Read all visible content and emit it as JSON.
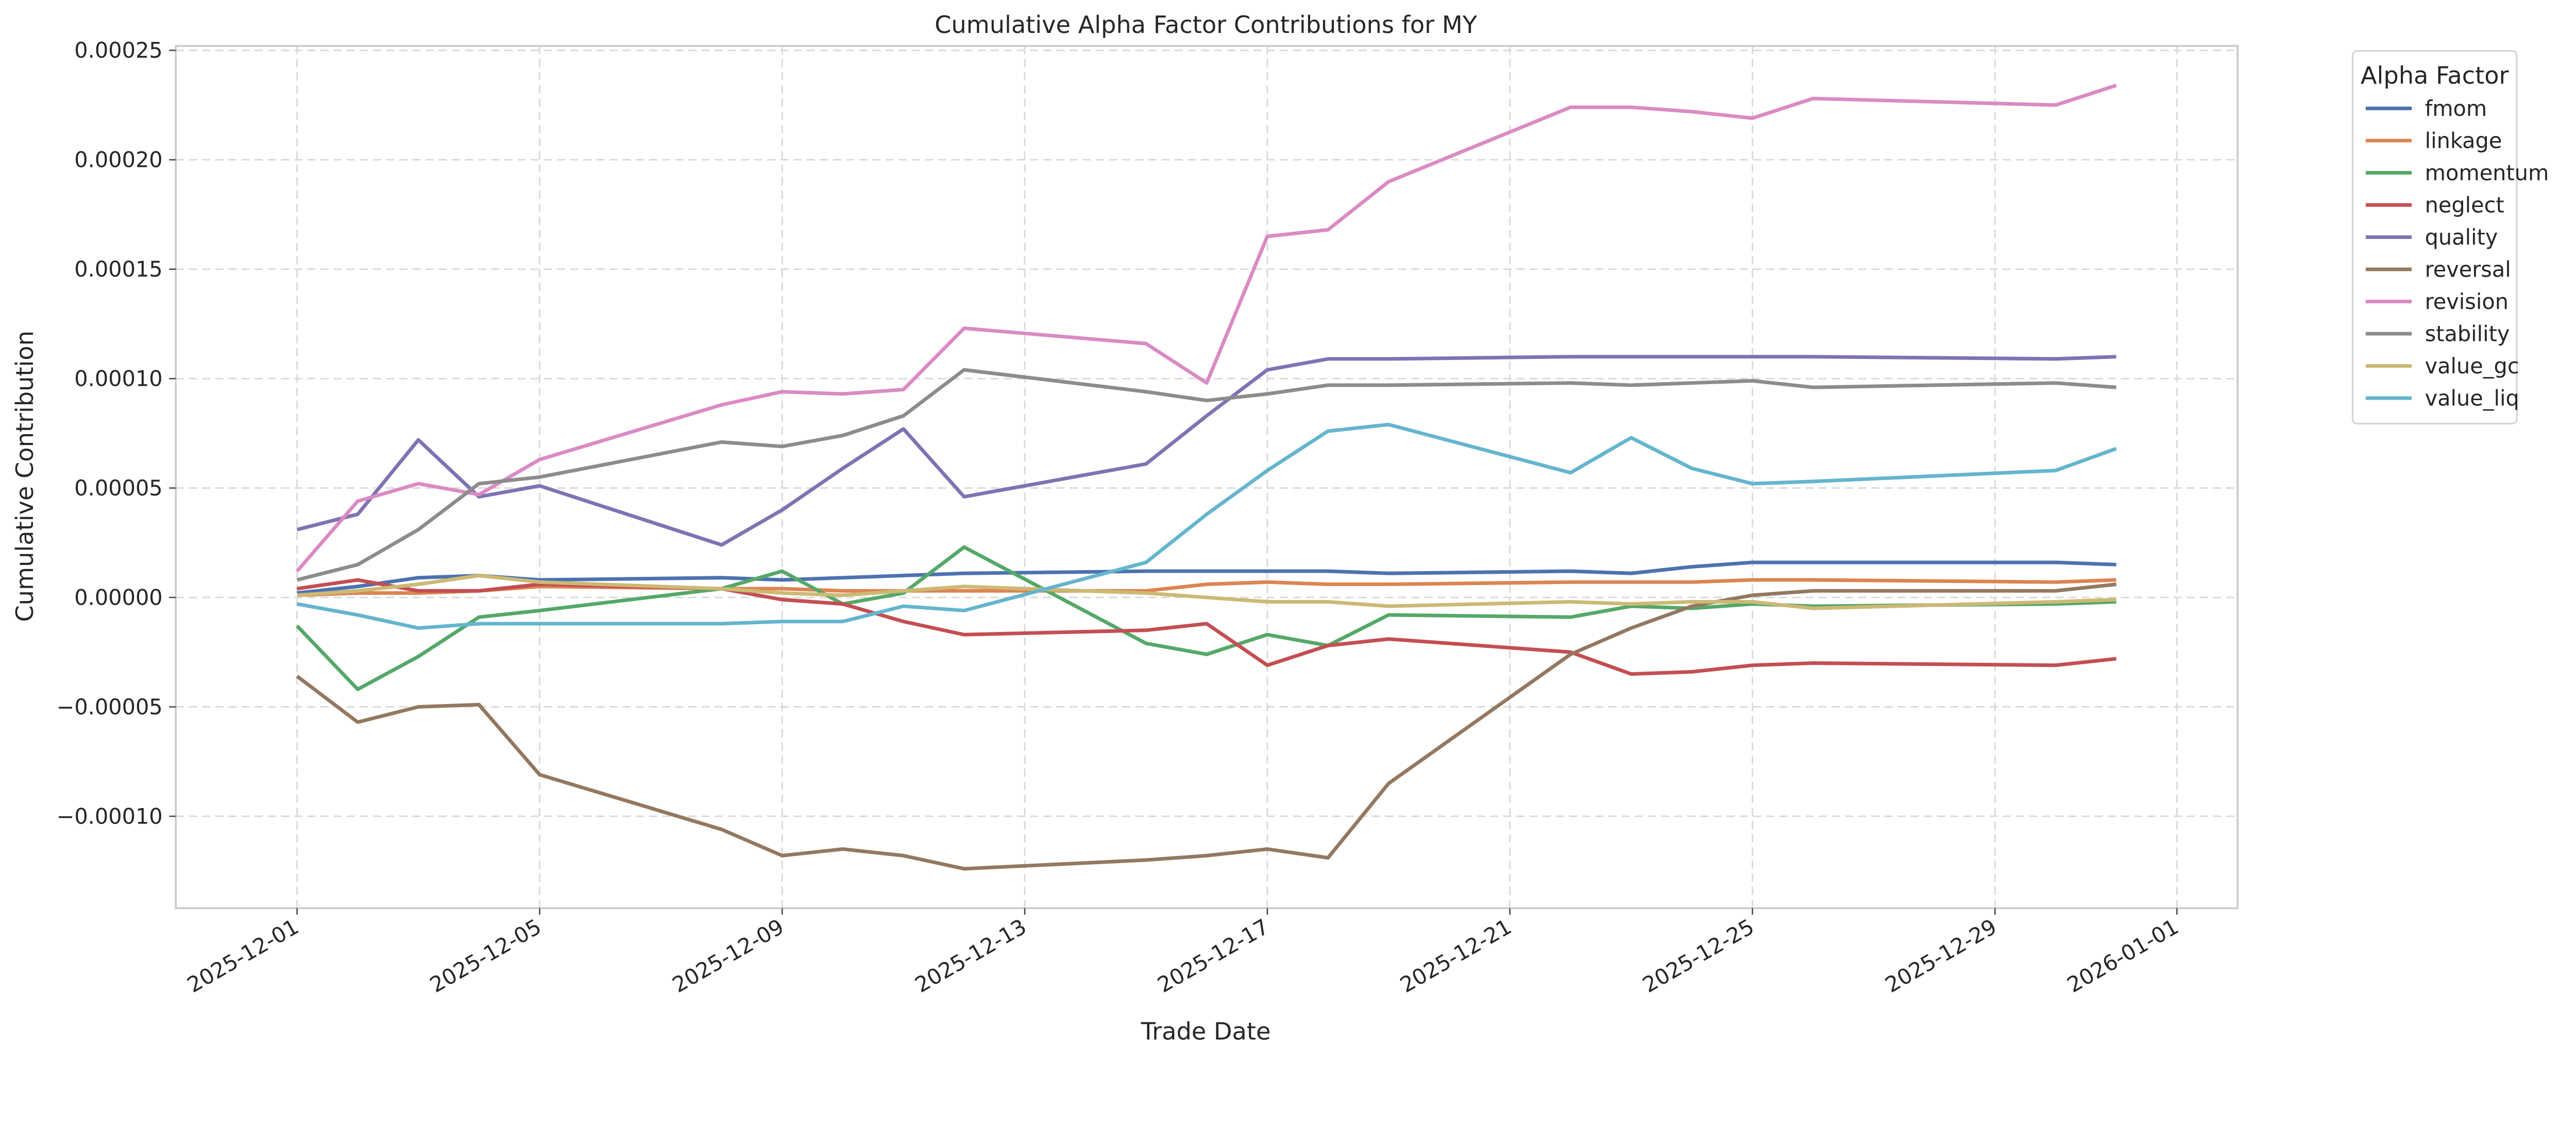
{
  "chart_data": {
    "type": "line",
    "title": "Cumulative Alpha Factor Contributions for MY",
    "xlabel": "Trade Date",
    "ylabel": "Cumulative Contribution",
    "ylim": [
      -0.000142,
      0.000252
    ],
    "xlim": [
      "2025-11-29",
      "2026-01-02"
    ],
    "grid": true,
    "legend": {
      "title": "Alpha Factor",
      "placement": "outside-top-right"
    },
    "yticks": [
      "−0.00010",
      "−0.00005",
      "0.00000",
      "0.00005",
      "0.00010",
      "0.00015",
      "0.00020",
      "0.00025"
    ],
    "ytick_values": [
      -0.0001,
      -5e-05,
      0,
      5e-05,
      0.0001,
      0.00015,
      0.0002,
      0.00025
    ],
    "xticks": [
      "2025-12-01",
      "2025-12-05",
      "2025-12-09",
      "2025-12-13",
      "2025-12-17",
      "2025-12-21",
      "2025-12-25",
      "2025-12-29",
      "2026-01-01"
    ],
    "x": [
      "2025-12-01",
      "2025-12-02",
      "2025-12-03",
      "2025-12-04",
      "2025-12-05",
      "2025-12-08",
      "2025-12-09",
      "2025-12-10",
      "2025-12-11",
      "2025-12-12",
      "2025-12-15",
      "2025-12-16",
      "2025-12-17",
      "2025-12-18",
      "2025-12-19",
      "2025-12-22",
      "2025-12-23",
      "2025-12-24",
      "2025-12-25",
      "2025-12-26",
      "2025-12-30",
      "2025-12-31"
    ],
    "series": [
      {
        "name": "fmom",
        "color": "#4c72b0",
        "values": [
          2e-06,
          5e-06,
          9e-06,
          1e-05,
          8e-06,
          9e-06,
          8e-06,
          9e-06,
          1e-05,
          1.1e-05,
          1.2e-05,
          1.2e-05,
          1.2e-05,
          1.2e-05,
          1.1e-05,
          1.2e-05,
          1.1e-05,
          1.4e-05,
          1.6e-05,
          1.6e-05,
          1.6e-05,
          1.5e-05
        ]
      },
      {
        "name": "linkage",
        "color": "#dd8452",
        "values": [
          1e-06,
          2e-06,
          2e-06,
          3e-06,
          5e-06,
          4e-06,
          4e-06,
          3e-06,
          3e-06,
          3e-06,
          3e-06,
          6e-06,
          7e-06,
          6e-06,
          6e-06,
          7e-06,
          7e-06,
          7e-06,
          8e-06,
          8e-06,
          7e-06,
          8e-06
        ]
      },
      {
        "name": "momentum",
        "color": "#55a868",
        "values": [
          -1.3e-05,
          -4.2e-05,
          -2.7e-05,
          -9e-06,
          -6e-06,
          4e-06,
          1.2e-05,
          -3e-06,
          2e-06,
          2.3e-05,
          -2.1e-05,
          -2.6e-05,
          -1.7e-05,
          -2.2e-05,
          -8e-06,
          -9e-06,
          -4e-06,
          -5e-06,
          -3e-06,
          -4e-06,
          -3e-06,
          -2e-06
        ]
      },
      {
        "name": "neglect",
        "color": "#c44e52",
        "values": [
          4e-06,
          8e-06,
          3e-06,
          3e-06,
          6e-06,
          4e-06,
          -1e-06,
          -3e-06,
          -1.1e-05,
          -1.7e-05,
          -1.5e-05,
          -1.2e-05,
          -3.1e-05,
          -2.2e-05,
          -1.9e-05,
          -2.5e-05,
          -3.5e-05,
          -3.4e-05,
          -3.1e-05,
          -3e-05,
          -3.1e-05,
          -2.8e-05
        ]
      },
      {
        "name": "quality",
        "color": "#8172b3",
        "values": [
          3.1e-05,
          3.8e-05,
          7.2e-05,
          4.6e-05,
          5.1e-05,
          2.4e-05,
          4e-05,
          5.9e-05,
          7.7e-05,
          4.6e-05,
          6.1e-05,
          8.3e-05,
          0.000104,
          0.000109,
          0.000109,
          0.00011,
          0.00011,
          0.00011,
          0.00011,
          0.00011,
          0.000109,
          0.00011
        ]
      },
      {
        "name": "reversal",
        "color": "#937860",
        "values": [
          -3.6e-05,
          -5.7e-05,
          -5e-05,
          -4.9e-05,
          -8.1e-05,
          -0.000106,
          -0.000118,
          -0.000115,
          -0.000118,
          -0.000124,
          -0.00012,
          -0.000118,
          -0.000115,
          -0.000119,
          -8.5e-05,
          -2.6e-05,
          -1.4e-05,
          -4e-06,
          1e-06,
          3e-06,
          3e-06,
          6e-06
        ]
      },
      {
        "name": "revision",
        "color": "#da8bc3",
        "values": [
          1.2e-05,
          4.4e-05,
          5.2e-05,
          4.7e-05,
          6.3e-05,
          8.8e-05,
          9.4e-05,
          9.3e-05,
          9.5e-05,
          0.000123,
          0.000116,
          9.8e-05,
          0.000165,
          0.000168,
          0.00019,
          0.000224,
          0.000224,
          0.000222,
          0.000219,
          0.000228,
          0.000225,
          0.000234
        ]
      },
      {
        "name": "stability",
        "color": "#8c8c8c",
        "values": [
          8e-06,
          1.5e-05,
          3.1e-05,
          5.2e-05,
          5.5e-05,
          7.1e-05,
          6.9e-05,
          7.4e-05,
          8.3e-05,
          0.000104,
          9.4e-05,
          9e-05,
          9.3e-05,
          9.7e-05,
          9.7e-05,
          9.8e-05,
          9.7e-05,
          9.8e-05,
          9.9e-05,
          9.6e-05,
          9.8e-05,
          9.6e-05
        ]
      },
      {
        "name": "value_gc",
        "color": "#ccb974",
        "values": [
          1e-06,
          3e-06,
          6e-06,
          1e-05,
          7e-06,
          4e-06,
          2e-06,
          1e-06,
          3e-06,
          5e-06,
          2e-06,
          0.0,
          -2e-06,
          -2e-06,
          -4e-06,
          -2e-06,
          -3e-06,
          -2e-06,
          -2e-06,
          -5e-06,
          -2e-06,
          -1e-06
        ]
      },
      {
        "name": "value_liq",
        "color": "#64b5cd",
        "values": [
          -3e-06,
          -8e-06,
          -1.4e-05,
          -1.2e-05,
          -1.2e-05,
          -1.2e-05,
          -1.1e-05,
          -1.1e-05,
          -4e-06,
          -6e-06,
          1.6e-05,
          3.8e-05,
          5.8e-05,
          7.6e-05,
          7.9e-05,
          5.7e-05,
          7.3e-05,
          5.9e-05,
          5.2e-05,
          5.3e-05,
          5.8e-05,
          6.8e-05
        ]
      }
    ]
  }
}
